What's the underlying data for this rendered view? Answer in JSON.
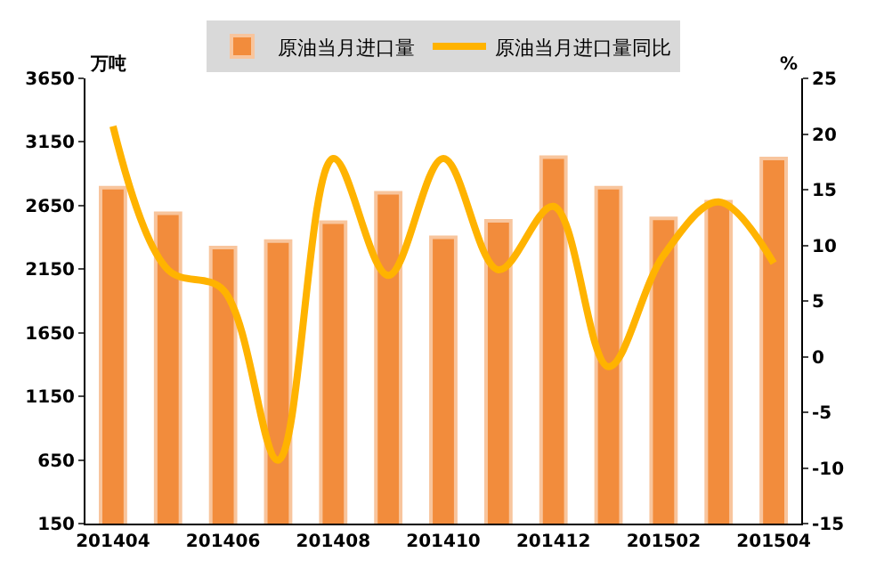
{
  "chart_data": {
    "type": "bar",
    "categories": [
      "201404",
      null,
      "201406",
      null,
      "201408",
      null,
      "201410",
      null,
      "201412",
      null,
      "201502",
      null,
      "201504"
    ],
    "series": [
      {
        "name": "原油当月进口量",
        "color": "#f28c3c",
        "values": [
          2790,
          2590,
          2320,
          2370,
          2520,
          2750,
          2400,
          2530,
          3030,
          2790,
          2550,
          2680,
          3020
        ]
      },
      {
        "name": "原油当月进口量同比",
        "type": "line",
        "axis": "y2",
        "color": "#ffb300",
        "values": [
          20.7,
          7.8,
          6.0,
          -9.3,
          17.8,
          7.3,
          17.8,
          7.8,
          13.5,
          -0.9,
          9.1,
          13.9,
          8.4
        ]
      }
    ],
    "ylabel": "万吨",
    "y2label": "%",
    "ylim": [
      150,
      3650
    ],
    "yticks": [
      150,
      650,
      1150,
      1650,
      2150,
      2650,
      3150,
      3650
    ],
    "y2lim": [
      -15,
      25
    ],
    "y2ticks": [
      -15,
      -10,
      -5,
      0,
      5,
      10,
      15,
      20,
      25
    ],
    "legend": "top",
    "marker": "none",
    "line_style": "solid"
  }
}
